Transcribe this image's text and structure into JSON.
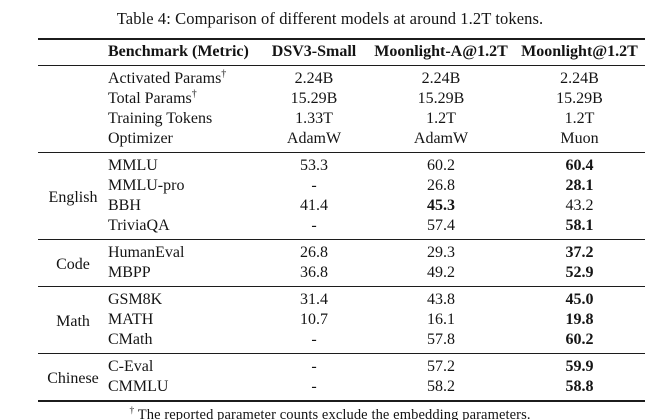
{
  "colors": {
    "background": "#ffffff",
    "text": "#141414",
    "rule": "#1c1c1c"
  },
  "table": {
    "title": "Table 4: Comparison of different models at around 1.2T tokens.",
    "columns": [
      "Benchmark (Metric)",
      "DSV3-Small",
      "Moonlight-A@1.2T",
      "Moonlight@1.2T"
    ],
    "dagger_symbol": "†",
    "sections": [
      {
        "group": "",
        "rows": [
          {
            "name": "Activated Params",
            "dagger": "†",
            "values": [
              "2.24B",
              "2.24B",
              "2.24B"
            ],
            "bold": null
          },
          {
            "name": "Total Params",
            "dagger": "†",
            "values": [
              "15.29B",
              "15.29B",
              "15.29B"
            ],
            "bold": null
          },
          {
            "name": "Training Tokens",
            "dagger": null,
            "values": [
              "1.33T",
              "1.2T",
              "1.2T"
            ],
            "bold": null
          },
          {
            "name": "Optimizer",
            "dagger": null,
            "values": [
              "AdamW",
              "AdamW",
              "Muon"
            ],
            "bold": null
          }
        ]
      },
      {
        "group": "English",
        "rows": [
          {
            "name": "MMLU",
            "dagger": null,
            "values": [
              "53.3",
              "60.2",
              "60.4"
            ],
            "bold": 2
          },
          {
            "name": "MMLU-pro",
            "dagger": null,
            "values": [
              "-",
              "26.8",
              "28.1"
            ],
            "bold": 2
          },
          {
            "name": "BBH",
            "dagger": null,
            "values": [
              "41.4",
              "45.3",
              "43.2"
            ],
            "bold": 1
          },
          {
            "name": "TriviaQA",
            "dagger": null,
            "values": [
              "-",
              "57.4",
              "58.1"
            ],
            "bold": 2
          }
        ]
      },
      {
        "group": "Code",
        "rows": [
          {
            "name": "HumanEval",
            "dagger": null,
            "values": [
              "26.8",
              "29.3",
              "37.2"
            ],
            "bold": 2
          },
          {
            "name": "MBPP",
            "dagger": null,
            "values": [
              "36.8",
              "49.2",
              "52.9"
            ],
            "bold": 2
          }
        ]
      },
      {
        "group": "Math",
        "rows": [
          {
            "name": "GSM8K",
            "dagger": null,
            "values": [
              "31.4",
              "43.8",
              "45.0"
            ],
            "bold": 2
          },
          {
            "name": "MATH",
            "dagger": null,
            "values": [
              "10.7",
              "16.1",
              "19.8"
            ],
            "bold": 2
          },
          {
            "name": "CMath",
            "dagger": null,
            "values": [
              "-",
              "57.8",
              "60.2"
            ],
            "bold": 2
          }
        ]
      },
      {
        "group": "Chinese",
        "rows": [
          {
            "name": "C-Eval",
            "dagger": null,
            "values": [
              "-",
              "57.2",
              "59.9"
            ],
            "bold": 2
          },
          {
            "name": "CMMLU",
            "dagger": null,
            "values": [
              "-",
              "58.2",
              "58.8"
            ],
            "bold": 2
          }
        ]
      }
    ],
    "footnote": {
      "symbol": "†",
      "text": "The reported parameter counts exclude the embedding parameters."
    }
  }
}
